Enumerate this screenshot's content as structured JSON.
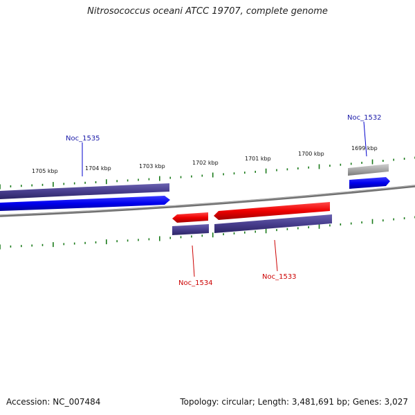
{
  "title": "Nitrosococcus oceani ATCC 19707, complete genome",
  "footer": {
    "accession": "Accession: NC_007484",
    "topology": "Topology: circular; Length: 3,481,691 bp; Genes: 3,027"
  },
  "ticks": [
    "1705 kbp",
    "1704 kbp",
    "1703 kbp",
    "1702 kbp",
    "1701 kbp",
    "1700 kbp",
    "1699 kbp"
  ],
  "genes": [
    {
      "label": "Noc_1535",
      "color": "#1a1aa8"
    },
    {
      "label": "Noc_1532",
      "color": "#1a1aa8"
    },
    {
      "label": "Noc_1534",
      "color": "#cc0000"
    },
    {
      "label": "Noc_1533",
      "color": "#cc0000"
    }
  ],
  "colors": {
    "backbone": "#808080",
    "tick": "#1a7a1a",
    "cds": "#4a4190",
    "forward_gene": "#0000ee",
    "reverse_gene": "#ee0000",
    "other_feature": "#a8a8a8"
  }
}
